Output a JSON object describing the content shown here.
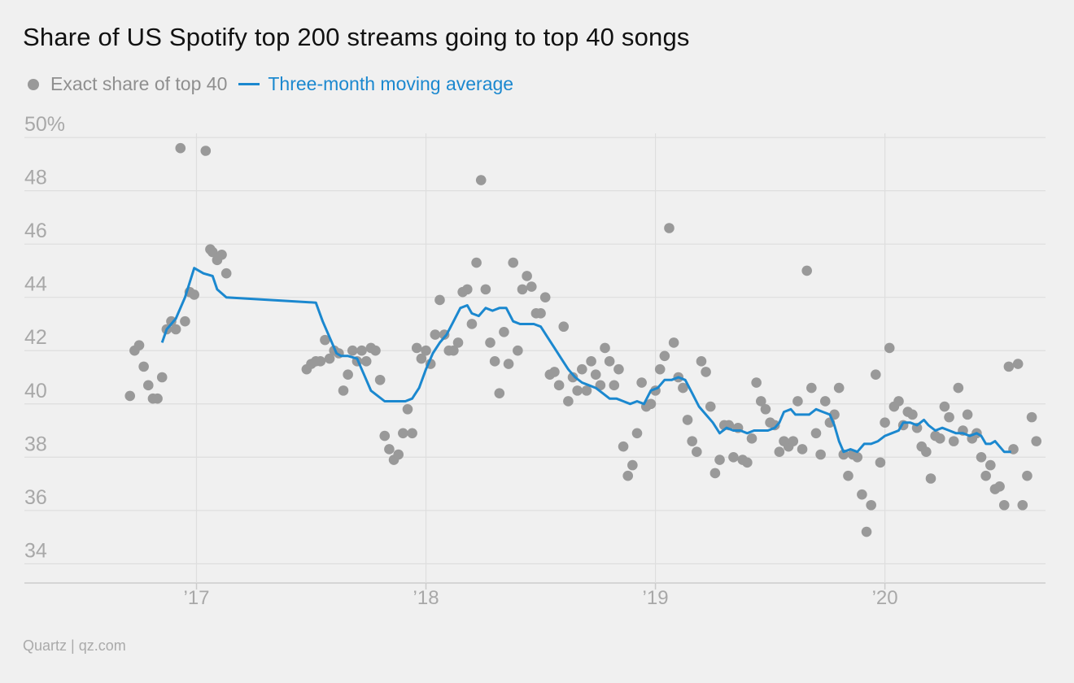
{
  "title": "Share of US Spotify top 200 streams going to top 40 songs",
  "legend": {
    "dots_label": "Exact share of top 40",
    "line_label": "Three-month moving average"
  },
  "source": "Quartz | qz.com",
  "colors": {
    "dots": "#999999",
    "line": "#1b88cf",
    "grid": "#dedede",
    "tick_text": "#a8a8a8"
  },
  "chart_data": {
    "type": "scatter",
    "title": "Share of US Spotify top 200 streams going to top 40 songs",
    "y_tick_labels": [
      "50%",
      "48",
      "46",
      "44",
      "42",
      "40",
      "38",
      "36",
      "34"
    ],
    "y_tick_values": [
      50,
      48,
      46,
      44,
      42,
      40,
      38,
      36,
      34
    ],
    "ylim": [
      33.4,
      50.4
    ],
    "x_tick_labels": [
      "’17",
      "’18",
      "’19",
      "’20"
    ],
    "x_tick_values": [
      2017.0,
      2018.0,
      2019.0,
      2020.0
    ],
    "xlim": [
      2016.25,
      2020.7
    ],
    "grid": true,
    "legend_position": "top-left",
    "series": [
      {
        "name": "Exact share of top 40",
        "kind": "scatter",
        "points": [
          [
            2016.71,
            40.3
          ],
          [
            2016.73,
            42.0
          ],
          [
            2016.75,
            42.2
          ],
          [
            2016.77,
            41.4
          ],
          [
            2016.79,
            40.7
          ],
          [
            2016.81,
            40.2
          ],
          [
            2016.83,
            40.2
          ],
          [
            2016.85,
            41.0
          ],
          [
            2016.87,
            42.8
          ],
          [
            2016.89,
            43.1
          ],
          [
            2016.91,
            42.8
          ],
          [
            2016.93,
            49.6
          ],
          [
            2016.95,
            43.1
          ],
          [
            2016.97,
            44.2
          ],
          [
            2016.99,
            44.1
          ],
          [
            2017.04,
            49.5
          ],
          [
            2017.06,
            45.8
          ],
          [
            2017.07,
            45.7
          ],
          [
            2017.09,
            45.4
          ],
          [
            2017.11,
            45.6
          ],
          [
            2017.13,
            44.9
          ],
          [
            2017.48,
            41.3
          ],
          [
            2017.5,
            41.5
          ],
          [
            2017.52,
            41.6
          ],
          [
            2017.54,
            41.6
          ],
          [
            2017.56,
            42.4
          ],
          [
            2017.58,
            41.7
          ],
          [
            2017.6,
            42.0
          ],
          [
            2017.62,
            41.9
          ],
          [
            2017.64,
            40.5
          ],
          [
            2017.66,
            41.1
          ],
          [
            2017.68,
            42.0
          ],
          [
            2017.7,
            41.6
          ],
          [
            2017.72,
            42.0
          ],
          [
            2017.74,
            41.6
          ],
          [
            2017.76,
            42.1
          ],
          [
            2017.78,
            42.0
          ],
          [
            2017.8,
            40.9
          ],
          [
            2017.82,
            38.8
          ],
          [
            2017.84,
            38.3
          ],
          [
            2017.86,
            37.9
          ],
          [
            2017.88,
            38.1
          ],
          [
            2017.9,
            38.9
          ],
          [
            2017.92,
            39.8
          ],
          [
            2017.94,
            38.9
          ],
          [
            2017.96,
            42.1
          ],
          [
            2017.98,
            41.7
          ],
          [
            2018.0,
            42.0
          ],
          [
            2018.02,
            41.5
          ],
          [
            2018.04,
            42.6
          ],
          [
            2018.06,
            43.9
          ],
          [
            2018.08,
            42.6
          ],
          [
            2018.1,
            42.0
          ],
          [
            2018.12,
            42.0
          ],
          [
            2018.14,
            42.3
          ],
          [
            2018.16,
            44.2
          ],
          [
            2018.18,
            44.3
          ],
          [
            2018.2,
            43.0
          ],
          [
            2018.22,
            45.3
          ],
          [
            2018.24,
            48.4
          ],
          [
            2018.26,
            44.3
          ],
          [
            2018.28,
            42.3
          ],
          [
            2018.3,
            41.6
          ],
          [
            2018.32,
            40.4
          ],
          [
            2018.34,
            42.7
          ],
          [
            2018.36,
            41.5
          ],
          [
            2018.38,
            45.3
          ],
          [
            2018.4,
            42.0
          ],
          [
            2018.42,
            44.3
          ],
          [
            2018.44,
            44.8
          ],
          [
            2018.46,
            44.4
          ],
          [
            2018.48,
            43.4
          ],
          [
            2018.5,
            43.4
          ],
          [
            2018.52,
            44.0
          ],
          [
            2018.54,
            41.1
          ],
          [
            2018.56,
            41.2
          ],
          [
            2018.58,
            40.7
          ],
          [
            2018.6,
            42.9
          ],
          [
            2018.62,
            40.1
          ],
          [
            2018.64,
            41.0
          ],
          [
            2018.66,
            40.5
          ],
          [
            2018.68,
            41.3
          ],
          [
            2018.7,
            40.5
          ],
          [
            2018.72,
            41.6
          ],
          [
            2018.74,
            41.1
          ],
          [
            2018.76,
            40.7
          ],
          [
            2018.78,
            42.1
          ],
          [
            2018.8,
            41.6
          ],
          [
            2018.82,
            40.7
          ],
          [
            2018.84,
            41.3
          ],
          [
            2018.86,
            38.4
          ],
          [
            2018.88,
            37.3
          ],
          [
            2018.9,
            37.7
          ],
          [
            2018.92,
            38.9
          ],
          [
            2018.94,
            40.8
          ],
          [
            2018.96,
            39.9
          ],
          [
            2018.98,
            40.0
          ],
          [
            2019.0,
            40.5
          ],
          [
            2019.02,
            41.3
          ],
          [
            2019.04,
            41.8
          ],
          [
            2019.06,
            46.6
          ],
          [
            2019.08,
            42.3
          ],
          [
            2019.1,
            41.0
          ],
          [
            2019.12,
            40.6
          ],
          [
            2019.14,
            39.4
          ],
          [
            2019.16,
            38.6
          ],
          [
            2019.18,
            38.2
          ],
          [
            2019.2,
            41.6
          ],
          [
            2019.22,
            41.2
          ],
          [
            2019.24,
            39.9
          ],
          [
            2019.26,
            37.4
          ],
          [
            2019.28,
            37.9
          ],
          [
            2019.3,
            39.2
          ],
          [
            2019.32,
            39.2
          ],
          [
            2019.34,
            38.0
          ],
          [
            2019.36,
            39.1
          ],
          [
            2019.38,
            37.9
          ],
          [
            2019.4,
            37.8
          ],
          [
            2019.42,
            38.7
          ],
          [
            2019.44,
            40.8
          ],
          [
            2019.46,
            40.1
          ],
          [
            2019.48,
            39.8
          ],
          [
            2019.5,
            39.3
          ],
          [
            2019.52,
            39.2
          ],
          [
            2019.54,
            38.2
          ],
          [
            2019.56,
            38.6
          ],
          [
            2019.58,
            38.4
          ],
          [
            2019.6,
            38.6
          ],
          [
            2019.62,
            40.1
          ],
          [
            2019.64,
            38.3
          ],
          [
            2019.66,
            45.0
          ],
          [
            2019.68,
            40.6
          ],
          [
            2019.7,
            38.9
          ],
          [
            2019.72,
            38.1
          ],
          [
            2019.74,
            40.1
          ],
          [
            2019.76,
            39.3
          ],
          [
            2019.78,
            39.6
          ],
          [
            2019.8,
            40.6
          ],
          [
            2019.82,
            38.1
          ],
          [
            2019.84,
            37.3
          ],
          [
            2019.86,
            38.1
          ],
          [
            2019.88,
            38.0
          ],
          [
            2019.9,
            36.6
          ],
          [
            2019.92,
            35.2
          ],
          [
            2019.94,
            36.2
          ],
          [
            2019.96,
            41.1
          ],
          [
            2019.98,
            37.8
          ],
          [
            2020.0,
            39.3
          ],
          [
            2020.02,
            42.1
          ],
          [
            2020.04,
            39.9
          ],
          [
            2020.06,
            40.1
          ],
          [
            2020.08,
            39.2
          ],
          [
            2020.1,
            39.7
          ],
          [
            2020.12,
            39.6
          ],
          [
            2020.14,
            39.1
          ],
          [
            2020.16,
            38.4
          ],
          [
            2020.18,
            38.2
          ],
          [
            2020.2,
            37.2
          ],
          [
            2020.22,
            38.8
          ],
          [
            2020.24,
            38.7
          ],
          [
            2020.26,
            39.9
          ],
          [
            2020.28,
            39.5
          ],
          [
            2020.3,
            38.6
          ],
          [
            2020.32,
            40.6
          ],
          [
            2020.34,
            39.0
          ],
          [
            2020.36,
            39.6
          ],
          [
            2020.38,
            38.7
          ],
          [
            2020.4,
            38.9
          ],
          [
            2020.42,
            38.0
          ],
          [
            2020.44,
            37.3
          ],
          [
            2020.46,
            37.7
          ],
          [
            2020.48,
            36.8
          ],
          [
            2020.5,
            36.9
          ],
          [
            2020.52,
            36.2
          ],
          [
            2020.54,
            41.4
          ],
          [
            2020.56,
            38.3
          ],
          [
            2020.58,
            41.5
          ],
          [
            2020.6,
            36.2
          ],
          [
            2020.62,
            37.3
          ],
          [
            2020.64,
            39.5
          ],
          [
            2020.66,
            38.6
          ]
        ]
      },
      {
        "name": "Three-month moving average",
        "kind": "line",
        "points": [
          [
            2016.85,
            42.3
          ],
          [
            2016.87,
            42.8
          ],
          [
            2016.91,
            43.2
          ],
          [
            2016.95,
            44.0
          ],
          [
            2016.99,
            45.1
          ],
          [
            2017.03,
            44.9
          ],
          [
            2017.07,
            44.8
          ],
          [
            2017.09,
            44.3
          ],
          [
            2017.13,
            44.0
          ],
          [
            2017.52,
            43.8
          ],
          [
            2017.55,
            43.1
          ],
          [
            2017.58,
            42.5
          ],
          [
            2017.61,
            41.9
          ],
          [
            2017.63,
            41.8
          ],
          [
            2017.66,
            41.8
          ],
          [
            2017.7,
            41.7
          ],
          [
            2017.73,
            41.1
          ],
          [
            2017.76,
            40.5
          ],
          [
            2017.79,
            40.3
          ],
          [
            2017.82,
            40.1
          ],
          [
            2017.85,
            40.1
          ],
          [
            2017.88,
            40.1
          ],
          [
            2017.91,
            40.1
          ],
          [
            2017.94,
            40.2
          ],
          [
            2017.97,
            40.6
          ],
          [
            2018.0,
            41.3
          ],
          [
            2018.03,
            41.9
          ],
          [
            2018.06,
            42.3
          ],
          [
            2018.09,
            42.6
          ],
          [
            2018.12,
            43.1
          ],
          [
            2018.15,
            43.6
          ],
          [
            2018.18,
            43.7
          ],
          [
            2018.2,
            43.4
          ],
          [
            2018.23,
            43.3
          ],
          [
            2018.26,
            43.6
          ],
          [
            2018.29,
            43.5
          ],
          [
            2018.32,
            43.6
          ],
          [
            2018.35,
            43.6
          ],
          [
            2018.38,
            43.1
          ],
          [
            2018.41,
            43.0
          ],
          [
            2018.44,
            43.0
          ],
          [
            2018.47,
            43.0
          ],
          [
            2018.5,
            42.9
          ],
          [
            2018.53,
            42.5
          ],
          [
            2018.56,
            42.1
          ],
          [
            2018.59,
            41.7
          ],
          [
            2018.62,
            41.3
          ],
          [
            2018.65,
            41.0
          ],
          [
            2018.68,
            40.8
          ],
          [
            2018.71,
            40.7
          ],
          [
            2018.74,
            40.6
          ],
          [
            2018.77,
            40.4
          ],
          [
            2018.8,
            40.2
          ],
          [
            2018.83,
            40.2
          ],
          [
            2018.86,
            40.1
          ],
          [
            2018.89,
            40.0
          ],
          [
            2018.92,
            40.1
          ],
          [
            2018.95,
            40.0
          ],
          [
            2018.98,
            40.5
          ],
          [
            2019.01,
            40.6
          ],
          [
            2019.04,
            40.9
          ],
          [
            2019.07,
            40.9
          ],
          [
            2019.1,
            41.0
          ],
          [
            2019.13,
            40.9
          ],
          [
            2019.16,
            40.4
          ],
          [
            2019.19,
            39.9
          ],
          [
            2019.22,
            39.6
          ],
          [
            2019.25,
            39.3
          ],
          [
            2019.28,
            38.9
          ],
          [
            2019.31,
            39.1
          ],
          [
            2019.34,
            39.0
          ],
          [
            2019.37,
            39.0
          ],
          [
            2019.4,
            38.9
          ],
          [
            2019.43,
            39.0
          ],
          [
            2019.46,
            39.0
          ],
          [
            2019.49,
            39.0
          ],
          [
            2019.52,
            39.1
          ],
          [
            2019.54,
            39.3
          ],
          [
            2019.56,
            39.7
          ],
          [
            2019.59,
            39.8
          ],
          [
            2019.61,
            39.6
          ],
          [
            2019.64,
            39.6
          ],
          [
            2019.67,
            39.6
          ],
          [
            2019.7,
            39.8
          ],
          [
            2019.73,
            39.7
          ],
          [
            2019.76,
            39.6
          ],
          [
            2019.78,
            39.2
          ],
          [
            2019.8,
            38.6
          ],
          [
            2019.82,
            38.2
          ],
          [
            2019.85,
            38.3
          ],
          [
            2019.88,
            38.2
          ],
          [
            2019.91,
            38.5
          ],
          [
            2019.94,
            38.5
          ],
          [
            2019.97,
            38.6
          ],
          [
            2020.0,
            38.8
          ],
          [
            2020.03,
            38.9
          ],
          [
            2020.06,
            39.0
          ],
          [
            2020.08,
            39.3
          ],
          [
            2020.11,
            39.3
          ],
          [
            2020.14,
            39.2
          ],
          [
            2020.17,
            39.4
          ],
          [
            2020.19,
            39.2
          ],
          [
            2020.22,
            39.0
          ],
          [
            2020.25,
            39.1
          ],
          [
            2020.28,
            39.0
          ],
          [
            2020.31,
            38.9
          ],
          [
            2020.34,
            38.9
          ],
          [
            2020.37,
            38.8
          ],
          [
            2020.4,
            38.9
          ],
          [
            2020.42,
            38.8
          ],
          [
            2020.44,
            38.5
          ],
          [
            2020.46,
            38.5
          ],
          [
            2020.48,
            38.6
          ],
          [
            2020.5,
            38.4
          ],
          [
            2020.52,
            38.2
          ],
          [
            2020.55,
            38.2
          ]
        ]
      }
    ]
  }
}
